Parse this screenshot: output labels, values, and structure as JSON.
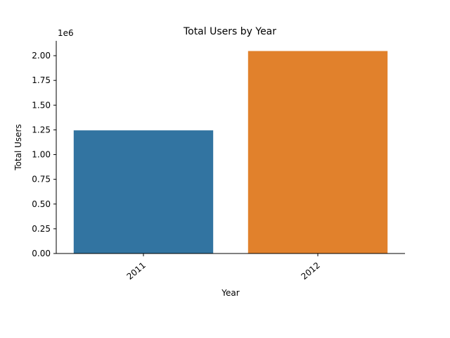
{
  "chart_data": {
    "type": "bar",
    "title": "Total Users by Year",
    "xlabel": "Year",
    "ylabel": "Total Users",
    "y_offset_label": "1e6",
    "categories": [
      "2011",
      "2012"
    ],
    "values": [
      1245000,
      2047000
    ],
    "colors": [
      "#3274a1",
      "#e1812c"
    ],
    "ylim": [
      0,
      2150000
    ],
    "yticks": [
      0,
      250000,
      500000,
      750000,
      1000000,
      1250000,
      1500000,
      1750000,
      2000000
    ],
    "ytick_labels": [
      "0.00",
      "0.25",
      "0.50",
      "0.75",
      "1.00",
      "1.25",
      "1.50",
      "1.75",
      "2.00"
    ],
    "grid": false,
    "legend": "none"
  }
}
